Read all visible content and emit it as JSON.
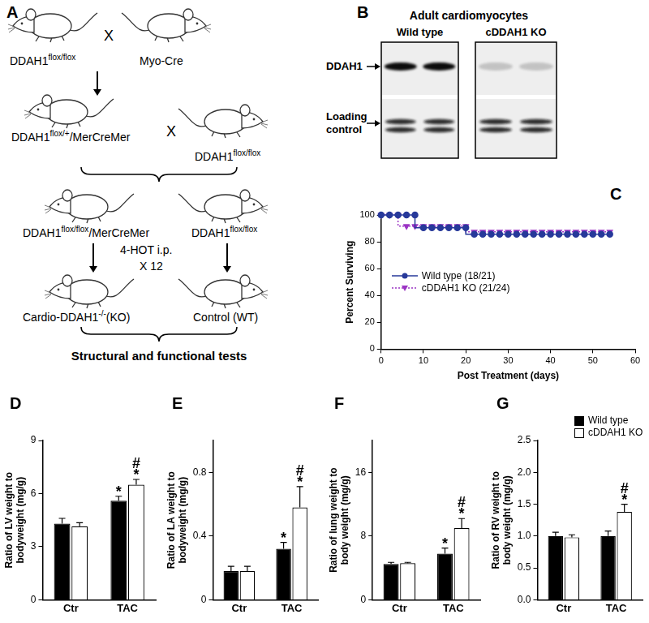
{
  "diagram": {
    "title": "A",
    "cross": "X",
    "nodes": [
      {
        "label": [
          "DDAH1",
          {
            "sup": "flox/flox"
          }
        ]
      },
      {
        "label": [
          "Myo-Cre"
        ]
      },
      {
        "label": [
          "DDAH1",
          {
            "sup": "flox/+"
          },
          "/MerCreMer"
        ]
      },
      {
        "label": [
          "DDAH1",
          {
            "sup": "flox/flox"
          }
        ]
      },
      {
        "label": [
          "DDAH1",
          {
            "sup": "flox/flox"
          },
          "/MerCreMer"
        ]
      },
      {
        "label": [
          "DDAH1",
          {
            "sup": "flox/flox"
          }
        ]
      },
      {
        "label": [
          "Cardio-DDAH1",
          {
            "sup": "-/-"
          },
          "(KO)"
        ]
      },
      {
        "label": [
          "Control (WT)"
        ]
      }
    ],
    "treatment": [
      "4-HOT i.p.",
      "X 12"
    ],
    "outcome": "Structural and functional tests"
  },
  "blot": {
    "title": "B",
    "heading": "Adult cardiomyocytes",
    "lanes": [
      "Wild type",
      "cDDAH1 KO"
    ],
    "rows": [
      "DDAH1",
      "Loading control"
    ]
  },
  "chart_data": [
    {
      "type": "line",
      "title": "C",
      "x_label": "Post Treatment (days)",
      "y_label": "Percent Surviving",
      "x": [
        0,
        2,
        4,
        6,
        8,
        10,
        12,
        14,
        16,
        18,
        20,
        22,
        24,
        26,
        28,
        30,
        32,
        34,
        36,
        38,
        40,
        42,
        44,
        46,
        48,
        50,
        52,
        54
      ],
      "series": [
        {
          "name": "Wild type (18/21)",
          "color": "#27399a",
          "marker": "circle",
          "line_style": "solid",
          "values": [
            100,
            100,
            100,
            100,
            100,
            90.5,
            90.5,
            90.5,
            90.5,
            90.5,
            90.5,
            85.7,
            85.7,
            85.7,
            85.7,
            85.7,
            85.7,
            85.7,
            85.7,
            85.7,
            85.7,
            85.7,
            85.7,
            85.7,
            85.7,
            85.7,
            85.7,
            85.7
          ]
        },
        {
          "name": "cDDAH1 KO (21/24)",
          "color": "#9b34c4",
          "marker": "triangle_down",
          "line_style": "dotted",
          "values": [
            100,
            100,
            100,
            91.7,
            91.7,
            91.7,
            91.7,
            91.7,
            91.7,
            91.7,
            91.7,
            87.5,
            87.5,
            87.5,
            87.5,
            87.5,
            87.5,
            87.5,
            87.5,
            87.5,
            87.5,
            87.5,
            87.5,
            87.5,
            87.5,
            87.5,
            87.5,
            87.5
          ]
        }
      ],
      "xlim": [
        0,
        60
      ],
      "xticks": [
        0,
        10,
        20,
        30,
        40,
        50,
        60
      ],
      "ylim": [
        0,
        100
      ],
      "yticks": [
        0,
        20,
        40,
        60,
        80,
        100
      ],
      "legend": "left",
      "grid": false
    },
    {
      "type": "bar",
      "title": "D",
      "y_label": [
        "Ratio of LV weight to",
        "bodyweight (mg/g)"
      ],
      "categories": [
        "Ctr",
        "TAC"
      ],
      "series": [
        {
          "name": "Wild type",
          "color": "#000000",
          "values": [
            4.3,
            5.6
          ],
          "errors": [
            0.3,
            0.25
          ]
        },
        {
          "name": "cDDAH1 KO",
          "color": "#ffffff",
          "values": [
            4.15,
            6.5
          ],
          "errors": [
            0.2,
            0.3
          ]
        }
      ],
      "ylim": [
        0,
        9
      ],
      "yticks": [
        0,
        3,
        6,
        9
      ],
      "annotations": [
        {
          "category": "TAC",
          "series": "Wild type",
          "text": [
            "*"
          ]
        },
        {
          "category": "TAC",
          "series": "cDDAH1 KO",
          "text": [
            "#",
            "*"
          ]
        }
      ],
      "grid": false
    },
    {
      "type": "bar",
      "title": "E",
      "y_label": [
        "Ratio of LA weight to",
        "bodyweight (mg/g)"
      ],
      "categories": [
        "Ctr",
        "TAC"
      ],
      "series": [
        {
          "name": "Wild type",
          "color": "#000000",
          "values": [
            0.18,
            0.32
          ],
          "errors": [
            0.03,
            0.04
          ]
        },
        {
          "name": "cDDAH1 KO",
          "color": "#ffffff",
          "values": [
            0.18,
            0.58
          ],
          "errors": [
            0.03,
            0.13
          ]
        }
      ],
      "ylim": [
        0,
        1.0
      ],
      "yticks": [
        0,
        0.4,
        0.8
      ],
      "annotations": [
        {
          "category": "TAC",
          "series": "Wild type",
          "text": [
            "*"
          ]
        },
        {
          "category": "TAC",
          "series": "cDDAH1 KO",
          "text": [
            "#",
            "*"
          ]
        }
      ],
      "grid": false
    },
    {
      "type": "bar",
      "title": "F",
      "y_label": [
        "Ratio of lung weight to",
        "body weight (mg/g)"
      ],
      "categories": [
        "Ctr",
        "TAC"
      ],
      "series": [
        {
          "name": "Wild type",
          "color": "#000000",
          "values": [
            4.5,
            5.8
          ],
          "errors": [
            0.2,
            0.7
          ]
        },
        {
          "name": "cDDAH1 KO",
          "color": "#ffffff",
          "values": [
            4.6,
            9.0
          ],
          "errors": [
            0.1,
            1.2
          ]
        }
      ],
      "ylim": [
        0,
        20
      ],
      "yticks": [
        0,
        8,
        16
      ],
      "annotations": [
        {
          "category": "TAC",
          "series": "Wild type",
          "text": [
            "*"
          ]
        },
        {
          "category": "TAC",
          "series": "cDDAH1 KO",
          "text": [
            "#",
            "*"
          ]
        }
      ],
      "grid": false
    },
    {
      "type": "bar",
      "title": "G",
      "y_label": [
        "Ratio of RV weight to",
        "body weight (mg/g)"
      ],
      "categories": [
        "Ctr",
        "TAC"
      ],
      "series": [
        {
          "name": "Wild type",
          "color": "#000000",
          "values": [
            1.0,
            1.0
          ],
          "errors": [
            0.06,
            0.08
          ]
        },
        {
          "name": "cDDAH1 KO",
          "color": "#ffffff",
          "values": [
            0.98,
            1.38
          ],
          "errors": [
            0.04,
            0.12
          ]
        }
      ],
      "ylim": [
        0,
        2.5
      ],
      "yticks": [
        {
          "value": 0,
          "label": "0.0"
        },
        0.5,
        {
          "value": 1,
          "label": "1.0"
        },
        1.5,
        {
          "value": 2,
          "label": "2.0"
        },
        2.5
      ],
      "annotations": [
        {
          "category": "TAC",
          "series": "cDDAH1 KO",
          "text": [
            "#",
            "*"
          ]
        }
      ],
      "legend": "top right",
      "grid": false
    }
  ]
}
